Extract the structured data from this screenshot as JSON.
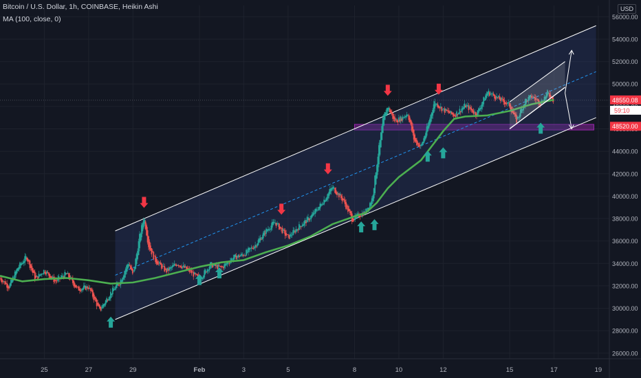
{
  "header": {
    "symbol_line": "Bitcoin / U.S. Dollar, 1h, COINBASE, Heikin Ashi",
    "indicator_line": "MA (100, close, 0)"
  },
  "currency_label": "USD",
  "colors": {
    "background": "#131722",
    "up": "#26a69a",
    "down": "#ef5350",
    "ma": "#4caf50",
    "channel_line": "#ffffff",
    "midline": "#2196f3",
    "support_zone": "#9c27b0",
    "price_tag": "#f23645",
    "arrow_up": "#26a69a",
    "arrow_down": "#f23645"
  },
  "price_tags": {
    "current_price": "48550.08",
    "countdown": "59:10",
    "second_price": "48520.00"
  },
  "chart_data": {
    "type": "candlestick",
    "chart_style": "Heikin Ashi",
    "ylabel": "USD",
    "ylim": [
      25500,
      57000
    ],
    "xlim": [
      -2.0,
      25.5
    ],
    "x_unit": "days since Jan 25",
    "x_ticks": [
      {
        "x": 0,
        "label": "25"
      },
      {
        "x": 2,
        "label": "27"
      },
      {
        "x": 4,
        "label": "29"
      },
      {
        "x": 7,
        "label": "Feb"
      },
      {
        "x": 9,
        "label": "3"
      },
      {
        "x": 11,
        "label": "5"
      },
      {
        "x": 14,
        "label": "8"
      },
      {
        "x": 16,
        "label": "10"
      },
      {
        "x": 18,
        "label": "12"
      },
      {
        "x": 21,
        "label": "15"
      },
      {
        "x": 23,
        "label": "17"
      },
      {
        "x": 25,
        "label": "19"
      }
    ],
    "y_ticks": [
      {
        "value": 26000,
        "label": "26000.00"
      },
      {
        "value": 28000,
        "label": "28000.00"
      },
      {
        "value": 30000,
        "label": "30000.00"
      },
      {
        "value": 32000,
        "label": "32000.00"
      },
      {
        "value": 34000,
        "label": "34000.00"
      },
      {
        "value": 36000,
        "label": "36000.00"
      },
      {
        "value": 38000,
        "label": "38000.00"
      },
      {
        "value": 40000,
        "label": "40000.00"
      },
      {
        "value": 42000,
        "label": "42000.00"
      },
      {
        "value": 44000,
        "label": "44000.00"
      },
      {
        "value": 46000,
        "label": "46000.00"
      },
      {
        "value": 48000,
        "label": "48000.00"
      },
      {
        "value": 50000,
        "label": "50000.00"
      },
      {
        "value": 52000,
        "label": "52000.00"
      },
      {
        "value": 54000,
        "label": "54000.00"
      },
      {
        "value": 56000,
        "label": "56000.00"
      }
    ],
    "price_waypoints": [
      [
        -2.0,
        32700
      ],
      [
        -1.6,
        31900
      ],
      [
        -1.2,
        33600
      ],
      [
        -0.8,
        34600
      ],
      [
        -0.4,
        32600
      ],
      [
        0.0,
        33400
      ],
      [
        0.5,
        32400
      ],
      [
        1.0,
        33100
      ],
      [
        1.5,
        31700
      ],
      [
        2.0,
        31900
      ],
      [
        2.5,
        29800
      ],
      [
        3.0,
        31400
      ],
      [
        3.4,
        32300
      ],
      [
        3.8,
        34100
      ],
      [
        4.0,
        32900
      ],
      [
        4.3,
        36400
      ],
      [
        4.5,
        38200
      ],
      [
        4.7,
        35600
      ],
      [
        5.0,
        34300
      ],
      [
        5.5,
        33300
      ],
      [
        6.0,
        34000
      ],
      [
        6.5,
        33400
      ],
      [
        7.0,
        32600
      ],
      [
        7.5,
        33900
      ],
      [
        8.0,
        33600
      ],
      [
        8.5,
        34500
      ],
      [
        9.0,
        34800
      ],
      [
        9.5,
        35600
      ],
      [
        10.0,
        36900
      ],
      [
        10.4,
        37700
      ],
      [
        10.7,
        37000
      ],
      [
        11.0,
        36300
      ],
      [
        11.5,
        37300
      ],
      [
        12.0,
        38100
      ],
      [
        12.5,
        39300
      ],
      [
        13.0,
        40800
      ],
      [
        13.5,
        39600
      ],
      [
        13.9,
        37900
      ],
      [
        14.2,
        38300
      ],
      [
        14.5,
        38600
      ],
      [
        14.8,
        39800
      ],
      [
        15.1,
        44300
      ],
      [
        15.3,
        47000
      ],
      [
        15.5,
        48000
      ],
      [
        15.8,
        46700
      ],
      [
        16.1,
        46900
      ],
      [
        16.4,
        47400
      ],
      [
        16.7,
        44900
      ],
      [
        17.0,
        44400
      ],
      [
        17.3,
        46200
      ],
      [
        17.6,
        48400
      ],
      [
        18.0,
        47700
      ],
      [
        18.5,
        47200
      ],
      [
        19.0,
        48100
      ],
      [
        19.5,
        47300
      ],
      [
        20.0,
        49300
      ],
      [
        20.5,
        48700
      ],
      [
        21.0,
        48100
      ],
      [
        21.3,
        46700
      ],
      [
        21.7,
        48500
      ],
      [
        22.0,
        48900
      ],
      [
        22.4,
        48300
      ],
      [
        22.7,
        49200
      ],
      [
        23.0,
        48550
      ]
    ],
    "ma_series": {
      "name": "MA (100, close, 0)",
      "points": [
        [
          -2.0,
          32900
        ],
        [
          -1.0,
          32400
        ],
        [
          0.0,
          32600
        ],
        [
          1.0,
          32700
        ],
        [
          2.0,
          32500
        ],
        [
          3.0,
          32200
        ],
        [
          4.0,
          32300
        ],
        [
          5.0,
          32700
        ],
        [
          6.0,
          33200
        ],
        [
          7.0,
          33700
        ],
        [
          8.0,
          34100
        ],
        [
          9.0,
          34300
        ],
        [
          10.0,
          35000
        ],
        [
          11.0,
          35600
        ],
        [
          12.0,
          36400
        ],
        [
          13.0,
          37500
        ],
        [
          14.0,
          38200
        ],
        [
          14.5,
          38500
        ],
        [
          15.0,
          39400
        ],
        [
          15.5,
          40700
        ],
        [
          16.0,
          41700
        ],
        [
          17.0,
          43200
        ],
        [
          17.5,
          44500
        ],
        [
          18.0,
          45800
        ],
        [
          18.5,
          46900
        ],
        [
          19.0,
          47100
        ],
        [
          20.0,
          47200
        ],
        [
          21.0,
          47600
        ],
        [
          22.0,
          48200
        ],
        [
          23.0,
          48600
        ]
      ]
    },
    "channel": {
      "start_x": 3.2,
      "end_x": 24.9,
      "upper": [
        36900,
        55200
      ],
      "lower": [
        29000,
        47000
      ],
      "mid": [
        32950,
        51100
      ]
    },
    "wedge": {
      "start_x": 21.0,
      "end_x": 23.5,
      "upper": [
        48400,
        52000
      ],
      "lower": [
        46000,
        49700
      ]
    },
    "support_zone": {
      "x_start": 14.0,
      "x_end": 24.8,
      "y_low": 45900,
      "y_high": 46400
    },
    "current_price_line": 48550.08,
    "projection_arrows": [
      {
        "from": [
          23.5,
          49200
        ],
        "to": [
          23.8,
          53000
        ]
      },
      {
        "from": [
          23.5,
          49200
        ],
        "to": [
          23.8,
          46000
        ]
      }
    ],
    "up_markers": [
      [
        3.0,
        28700
      ],
      [
        7.0,
        32500
      ],
      [
        7.9,
        33100
      ],
      [
        14.3,
        37200
      ],
      [
        14.9,
        37400
      ],
      [
        17.3,
        43500
      ],
      [
        18.0,
        43800
      ],
      [
        22.4,
        46000
      ]
    ],
    "down_markers": [
      [
        4.5,
        39500
      ],
      [
        10.7,
        38900
      ],
      [
        12.8,
        42500
      ],
      [
        15.5,
        49500
      ],
      [
        17.8,
        49600
      ]
    ]
  }
}
